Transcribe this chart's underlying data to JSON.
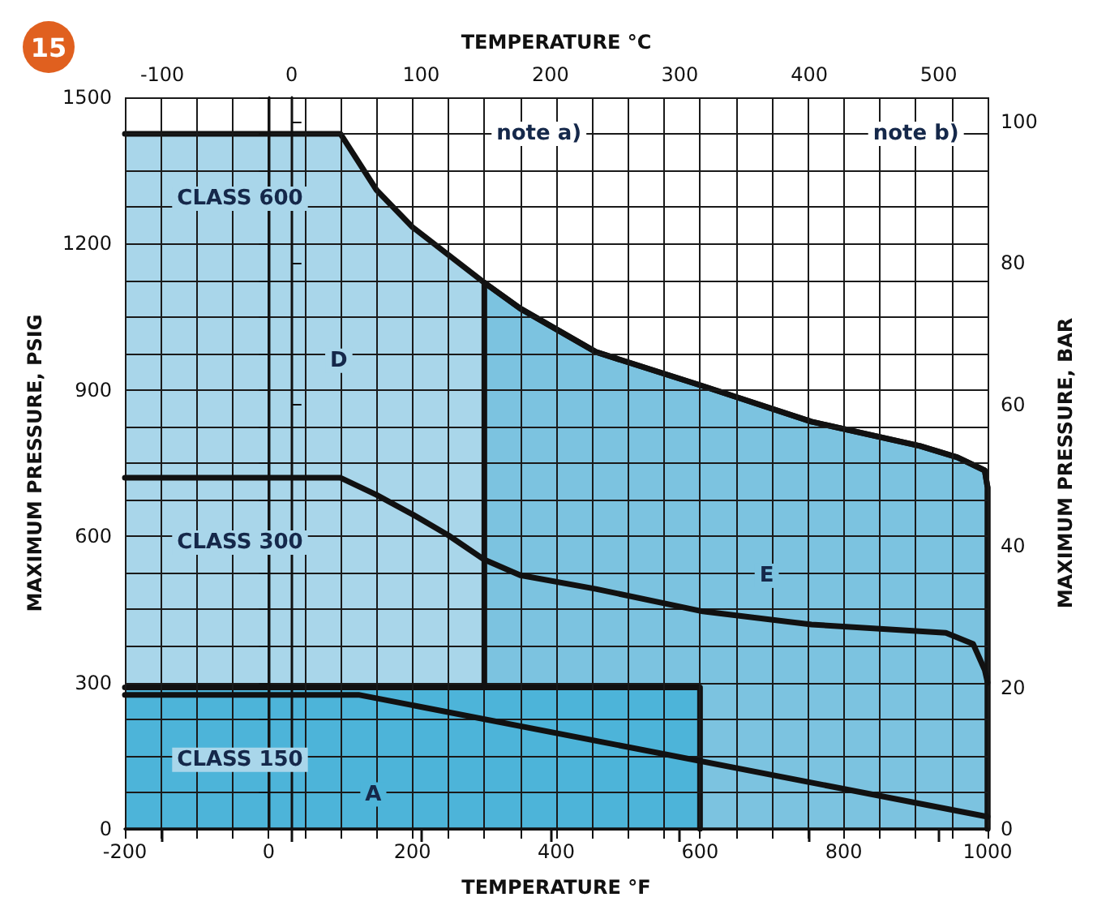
{
  "chart_data": {
    "type": "line",
    "xlabel": "TEMPERATURE °F",
    "ylabel": "MAXIMUM PRESSURE, PSIG",
    "x2label": "TEMPERATURE °C",
    "y2label": "MAXIMUM PRESSURE, BAR",
    "xlim": [
      -200,
      1000
    ],
    "ylim": [
      0,
      1500
    ],
    "x2lim": [
      -128.9,
      537.8
    ],
    "y2lim": [
      0,
      103.4
    ],
    "xticks": [
      -200,
      {
        "value": -150,
        "label": null
      },
      {
        "value": -100,
        "label": null
      },
      {
        "value": -50,
        "label": null
      },
      0,
      {
        "value": 50,
        "label": null
      },
      {
        "value": 100,
        "label": null
      },
      {
        "value": 150,
        "label": null
      },
      200,
      {
        "value": 250,
        "label": null
      },
      {
        "value": 300,
        "label": null
      },
      {
        "value": 350,
        "label": null
      },
      400,
      {
        "value": 450,
        "label": null
      },
      {
        "value": 500,
        "label": null
      },
      {
        "value": 550,
        "label": null
      },
      600,
      {
        "value": 650,
        "label": null
      },
      {
        "value": 700,
        "label": null
      },
      {
        "value": 750,
        "label": null
      },
      800,
      {
        "value": 850,
        "label": null
      },
      {
        "value": 900,
        "label": null
      },
      {
        "value": 950,
        "label": null
      },
      1000
    ],
    "yticks": [
      0,
      {
        "value": 75,
        "label": null
      },
      {
        "value": 150,
        "label": null
      },
      {
        "value": 225,
        "label": null
      },
      300,
      {
        "value": 375,
        "label": null
      },
      {
        "value": 450,
        "label": null
      },
      {
        "value": 525,
        "label": null
      },
      600,
      {
        "value": 675,
        "label": null
      },
      {
        "value": 750,
        "label": null
      },
      {
        "value": 825,
        "label": null
      },
      900,
      {
        "value": 975,
        "label": null
      },
      {
        "value": 1050,
        "label": null
      },
      {
        "value": 1125,
        "label": null
      },
      1200,
      {
        "value": 1275,
        "label": null
      },
      {
        "value": 1350,
        "label": null
      },
      {
        "value": 1425,
        "label": null
      },
      1500
    ],
    "x2ticks": [
      -100,
      0,
      100,
      200,
      300,
      400,
      500
    ],
    "y2ticks": [
      0,
      20,
      40,
      60,
      80,
      100
    ],
    "grid": true,
    "legend": "left",
    "series": [
      {
        "name": "CLASS 600",
        "type": "area",
        "color": "#a9d6ea",
        "x": [
          -200,
          100,
          150,
          200,
          250,
          300,
          350,
          455,
          604,
          755,
          906,
          958,
          996,
          1000,
          1000
        ],
        "values": [
          1425,
          1425,
          1310,
          1234,
          1177,
          1120,
          1067,
          978,
          908,
          835,
          785,
          762,
          735,
          700,
          0
        ]
      },
      {
        "type": "area",
        "color": "#7cc3e0",
        "x": [
          300,
          350,
          455,
          604,
          755,
          906,
          958,
          996,
          1000,
          1000
        ],
        "values": [
          1120,
          1067,
          978,
          908,
          835,
          785,
          762,
          735,
          700,
          0
        ]
      },
      {
        "type": "area",
        "color": "#4db4d9",
        "x": [
          -200,
          600,
          600
        ],
        "values": [
          290,
          290,
          0
        ]
      },
      {
        "color": "#111111",
        "x": [
          300,
          300
        ],
        "values": [
          290,
          1120
        ]
      },
      {
        "name": "CLASS 300",
        "color": "#111111",
        "x": [
          -200,
          100,
          150,
          200,
          250,
          300,
          350,
          455,
          604,
          755,
          942,
          980,
          996,
          1000
        ],
        "values": [
          720,
          720,
          685,
          645,
          602,
          552,
          520,
          492,
          446,
          419,
          402,
          379,
          326,
          300
        ]
      },
      {
        "name": "CLASS 150",
        "color": "#111111",
        "x": [
          -200,
          125,
          1000
        ],
        "values": [
          275,
          275,
          25
        ]
      }
    ],
    "annotations": [
      "15",
      "note a)",
      "note b)",
      "D",
      "E",
      "A"
    ]
  }
}
